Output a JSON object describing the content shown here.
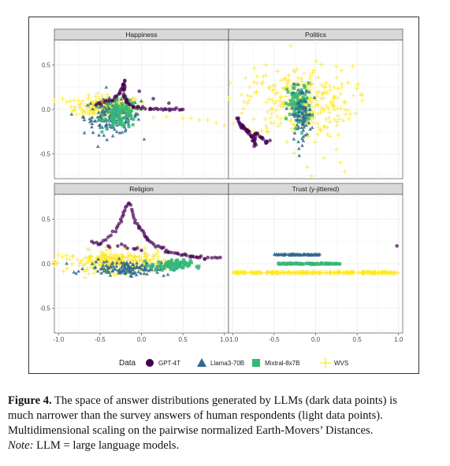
{
  "caption": {
    "figure_label": "Figure 4.",
    "line1": " The space of answer distributions generated by LLMs (dark data points) is",
    "line2": "much narrower than the survey answers of human respondents (light data points).",
    "line3": "Multidimensional scaling on the pairwise normalized Earth-Movers’ Distances.",
    "note_label": "Note:",
    "note_text": " LLM = large language models."
  },
  "colors": {
    "GPT-4T": "#440154",
    "Llama3-70B": "#2f6b8e",
    "Mixtral-8x7B": "#35b779",
    "WVS": "#fde725",
    "panel_bg": "#ffffff",
    "grid": "#ebebeb",
    "strip_bg": "#d9d9d9"
  },
  "chart_data": {
    "type": "scatter",
    "facet_layout": "2x2",
    "xlim": [
      -1.05,
      1.05
    ],
    "ylim": [
      -0.78,
      0.78
    ],
    "x_ticks": [
      "-1.0",
      "-0.5",
      "0.0",
      "0.5",
      "1.0"
    ],
    "y_ticks": [
      "0.5",
      "0.0",
      "-0.5"
    ],
    "legend": {
      "title": "Data",
      "position": "bottom",
      "entries": [
        {
          "label": "GPT-4T",
          "shape": "circle"
        },
        {
          "label": "Llama3-70B",
          "shape": "triangle"
        },
        {
          "label": "Mixtral-8x7B",
          "shape": "square"
        },
        {
          "label": "WVS",
          "shape": "cross"
        }
      ]
    },
    "panels": [
      {
        "title": "Happiness",
        "series": [
          {
            "name": "WVS",
            "cloud": {
              "cx": -0.4,
              "cy": 0.03,
              "sx": 0.2,
              "sy": 0.06,
              "n": 230
            },
            "extra_x": [
              -0.95,
              -0.9,
              -0.85,
              0.5,
              0.6,
              0.7,
              0.8,
              0.9,
              1.0,
              -0.7,
              0.3
            ],
            "extra_y": [
              0.12,
              0.08,
              0.03,
              -0.1,
              -0.1,
              -0.12,
              -0.12,
              -0.15,
              -0.18,
              -0.1,
              -0.08
            ]
          },
          {
            "name": "Llama3-70B",
            "cloud": {
              "cx": -0.35,
              "cy": -0.08,
              "sx": 0.17,
              "sy": 0.1,
              "n": 160
            }
          },
          {
            "name": "Mixtral-8x7B",
            "cloud": {
              "cx": -0.25,
              "cy": -0.05,
              "sx": 0.1,
              "sy": 0.08,
              "n": 110
            }
          },
          {
            "name": "GPT-4T",
            "x": [
              -0.55,
              -0.45,
              -0.35,
              -0.3,
              -0.25,
              -0.22,
              -0.2,
              -0.22,
              -0.2,
              -0.18,
              -0.15,
              -0.1,
              0.0,
              0.1,
              0.2,
              0.3,
              0.4,
              0.5,
              -0.2
            ],
            "y": [
              0.05,
              0.08,
              0.1,
              0.15,
              0.22,
              0.28,
              0.32,
              0.22,
              0.15,
              0.1,
              0.06,
              0.03,
              0.01,
              0.0,
              0.0,
              0.0,
              0.0,
              0.0,
              0.25
            ]
          }
        ]
      },
      {
        "title": "Politics",
        "series": [
          {
            "name": "WVS",
            "cloud": {
              "cx": -0.2,
              "cy": 0.08,
              "sx": 0.32,
              "sy": 0.2,
              "n": 300
            },
            "extra_x": [
              -0.1,
              -0.05,
              0.1,
              0.25,
              0.3,
              0.35,
              -0.3,
              -0.6,
              -0.8
            ],
            "extra_y": [
              -0.65,
              -0.75,
              -0.55,
              -0.45,
              -0.6,
              -0.7,
              0.72,
              0.5,
              0.25
            ]
          },
          {
            "name": "Mixtral-8x7B",
            "cloud": {
              "cx": -0.2,
              "cy": 0.05,
              "sx": 0.07,
              "sy": 0.12,
              "n": 90
            }
          },
          {
            "name": "Llama3-70B",
            "cloud": {
              "cx": -0.17,
              "cy": -0.05,
              "sx": 0.06,
              "sy": 0.15,
              "n": 90
            }
          },
          {
            "name": "GPT-4T",
            "x": [
              -0.95,
              -0.92,
              -0.88,
              -0.85,
              -0.8,
              -0.78,
              -0.75,
              -0.72,
              -0.75,
              -0.7,
              -0.65,
              -0.6,
              -0.55,
              -0.9,
              -0.82
            ],
            "y": [
              -0.1,
              -0.15,
              -0.18,
              -0.22,
              -0.25,
              -0.3,
              -0.35,
              -0.4,
              -0.3,
              -0.28,
              -0.32,
              -0.38,
              -0.35,
              -0.2,
              -0.25
            ]
          }
        ]
      },
      {
        "title": "Religion",
        "series": [
          {
            "name": "WVS",
            "cloud": {
              "cx": -0.3,
              "cy": 0.02,
              "sx": 0.3,
              "sy": 0.06,
              "n": 260
            },
            "extra_x": [
              -1.0,
              -0.95,
              -0.9,
              0.5,
              0.6,
              0.7,
              -0.7,
              -0.5
            ],
            "extra_y": [
              0.1,
              0.08,
              0.05,
              0.05,
              0.08,
              0.05,
              -0.08,
              -0.1
            ]
          },
          {
            "name": "Llama3-70B",
            "cloud": {
              "cx": -0.15,
              "cy": -0.05,
              "sx": 0.25,
              "sy": 0.04,
              "n": 150
            }
          },
          {
            "name": "Mixtral-8x7B",
            "cloud": {
              "cx": 0.35,
              "cy": -0.02,
              "sx": 0.12,
              "sy": 0.03,
              "n": 90
            }
          },
          {
            "name": "GPT-4T",
            "x": [
              -0.6,
              -0.5,
              -0.4,
              -0.3,
              -0.25,
              -0.2,
              -0.15,
              -0.1,
              -0.05,
              0.0,
              0.05,
              0.1,
              0.2,
              0.3,
              0.4,
              0.5,
              0.6,
              0.7,
              0.8,
              0.95,
              -0.4,
              -0.2,
              0.0
            ],
            "y": [
              0.25,
              0.22,
              0.3,
              0.4,
              0.5,
              0.6,
              0.68,
              0.55,
              0.45,
              0.38,
              0.3,
              0.25,
              0.2,
              0.15,
              0.12,
              0.1,
              0.08,
              0.07,
              0.07,
              0.07,
              0.2,
              0.2,
              0.15
            ]
          }
        ]
      },
      {
        "title": "Trust (y-jittered)",
        "series": [
          {
            "name": "WVS",
            "band": {
              "x_from": -1.0,
              "x_to": 1.0,
              "y": -0.1,
              "n": 260
            }
          },
          {
            "name": "Mixtral-8x7B",
            "band": {
              "x_from": -0.45,
              "x_to": 0.3,
              "y": 0.0,
              "n": 90
            }
          },
          {
            "name": "Llama3-70B",
            "band": {
              "x_from": -0.5,
              "x_to": 0.05,
              "y": 0.1,
              "n": 90
            }
          },
          {
            "name": "GPT-4T",
            "x": [
              0.98
            ],
            "y": [
              0.2
            ]
          }
        ]
      }
    ]
  }
}
